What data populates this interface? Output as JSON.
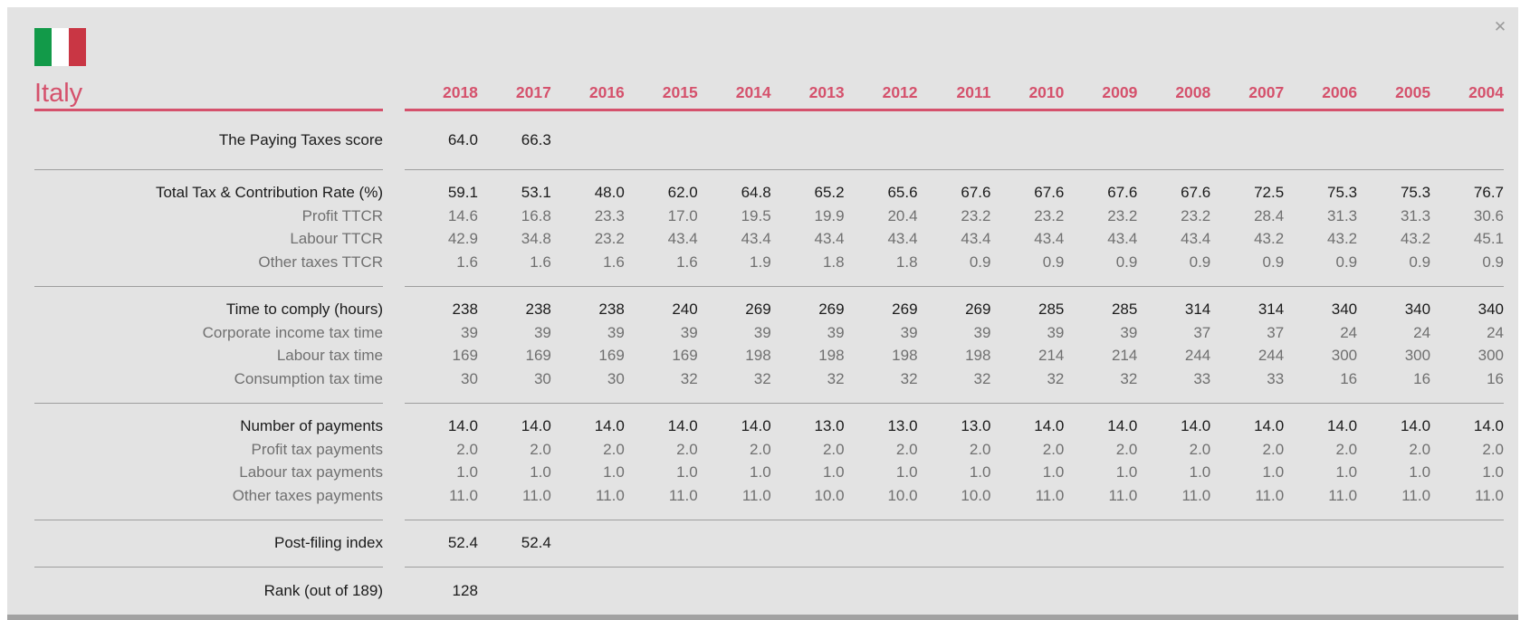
{
  "window": {
    "close_label": "✕"
  },
  "header": {
    "country": "Italy",
    "flag": "italy-flag-icon"
  },
  "colors": {
    "accent": "#d5516c",
    "flag_green": "#129a49",
    "flag_red": "#c93644",
    "background": "#e3e3e3"
  },
  "years": [
    "2018",
    "2017",
    "2016",
    "2015",
    "2014",
    "2013",
    "2012",
    "2011",
    "2010",
    "2009",
    "2008",
    "2007",
    "2006",
    "2005",
    "2004"
  ],
  "table": {
    "sections": [
      {
        "rows": [
          {
            "label": "The Paying Taxes score",
            "emphasis": true,
            "values": [
              "64.0",
              "66.3",
              "",
              "",
              "",
              "",
              "",
              "",
              "",
              "",
              "",
              "",
              "",
              "",
              ""
            ]
          }
        ]
      },
      {
        "rows": [
          {
            "label": "Total Tax & Contribution Rate (%)",
            "emphasis": true,
            "values": [
              "59.1",
              "53.1",
              "48.0",
              "62.0",
              "64.8",
              "65.2",
              "65.6",
              "67.6",
              "67.6",
              "67.6",
              "67.6",
              "72.5",
              "75.3",
              "75.3",
              "76.7"
            ]
          },
          {
            "label": "Profit TTCR",
            "emphasis": false,
            "values": [
              "14.6",
              "16.8",
              "23.3",
              "17.0",
              "19.5",
              "19.9",
              "20.4",
              "23.2",
              "23.2",
              "23.2",
              "23.2",
              "28.4",
              "31.3",
              "31.3",
              "30.6"
            ]
          },
          {
            "label": "Labour TTCR",
            "emphasis": false,
            "values": [
              "42.9",
              "34.8",
              "23.2",
              "43.4",
              "43.4",
              "43.4",
              "43.4",
              "43.4",
              "43.4",
              "43.4",
              "43.4",
              "43.2",
              "43.2",
              "43.2",
              "45.1"
            ]
          },
          {
            "label": "Other taxes TTCR",
            "emphasis": false,
            "values": [
              "1.6",
              "1.6",
              "1.6",
              "1.6",
              "1.9",
              "1.8",
              "1.8",
              "0.9",
              "0.9",
              "0.9",
              "0.9",
              "0.9",
              "0.9",
              "0.9",
              "0.9"
            ]
          }
        ]
      },
      {
        "rows": [
          {
            "label": "Time to comply (hours)",
            "emphasis": true,
            "values": [
              "238",
              "238",
              "238",
              "240",
              "269",
              "269",
              "269",
              "269",
              "285",
              "285",
              "314",
              "314",
              "340",
              "340",
              "340"
            ]
          },
          {
            "label": "Corporate income tax time",
            "emphasis": false,
            "values": [
              "39",
              "39",
              "39",
              "39",
              "39",
              "39",
              "39",
              "39",
              "39",
              "39",
              "37",
              "37",
              "24",
              "24",
              "24"
            ]
          },
          {
            "label": "Labour tax time",
            "emphasis": false,
            "values": [
              "169",
              "169",
              "169",
              "169",
              "198",
              "198",
              "198",
              "198",
              "214",
              "214",
              "244",
              "244",
              "300",
              "300",
              "300"
            ]
          },
          {
            "label": "Consumption tax time",
            "emphasis": false,
            "values": [
              "30",
              "30",
              "30",
              "32",
              "32",
              "32",
              "32",
              "32",
              "32",
              "32",
              "33",
              "33",
              "16",
              "16",
              "16"
            ]
          }
        ]
      },
      {
        "rows": [
          {
            "label": "Number of payments",
            "emphasis": true,
            "values": [
              "14.0",
              "14.0",
              "14.0",
              "14.0",
              "14.0",
              "13.0",
              "13.0",
              "13.0",
              "14.0",
              "14.0",
              "14.0",
              "14.0",
              "14.0",
              "14.0",
              "14.0"
            ]
          },
          {
            "label": "Profit tax payments",
            "emphasis": false,
            "values": [
              "2.0",
              "2.0",
              "2.0",
              "2.0",
              "2.0",
              "2.0",
              "2.0",
              "2.0",
              "2.0",
              "2.0",
              "2.0",
              "2.0",
              "2.0",
              "2.0",
              "2.0"
            ]
          },
          {
            "label": "Labour tax payments",
            "emphasis": false,
            "values": [
              "1.0",
              "1.0",
              "1.0",
              "1.0",
              "1.0",
              "1.0",
              "1.0",
              "1.0",
              "1.0",
              "1.0",
              "1.0",
              "1.0",
              "1.0",
              "1.0",
              "1.0"
            ]
          },
          {
            "label": "Other taxes payments",
            "emphasis": false,
            "values": [
              "11.0",
              "11.0",
              "11.0",
              "11.0",
              "11.0",
              "10.0",
              "10.0",
              "10.0",
              "11.0",
              "11.0",
              "11.0",
              "11.0",
              "11.0",
              "11.0",
              "11.0"
            ]
          }
        ]
      },
      {
        "rows": [
          {
            "label": "Post-filing index",
            "emphasis": true,
            "values": [
              "52.4",
              "52.4",
              "",
              "",
              "",
              "",
              "",
              "",
              "",
              "",
              "",
              "",
              "",
              "",
              ""
            ]
          }
        ]
      },
      {
        "rows": [
          {
            "label": "Rank (out of 189)",
            "emphasis": true,
            "values": [
              "128",
              "",
              "",
              "",
              "",
              "",
              "",
              "",
              "",
              "",
              "",
              "",
              "",
              "",
              ""
            ]
          }
        ]
      }
    ]
  }
}
